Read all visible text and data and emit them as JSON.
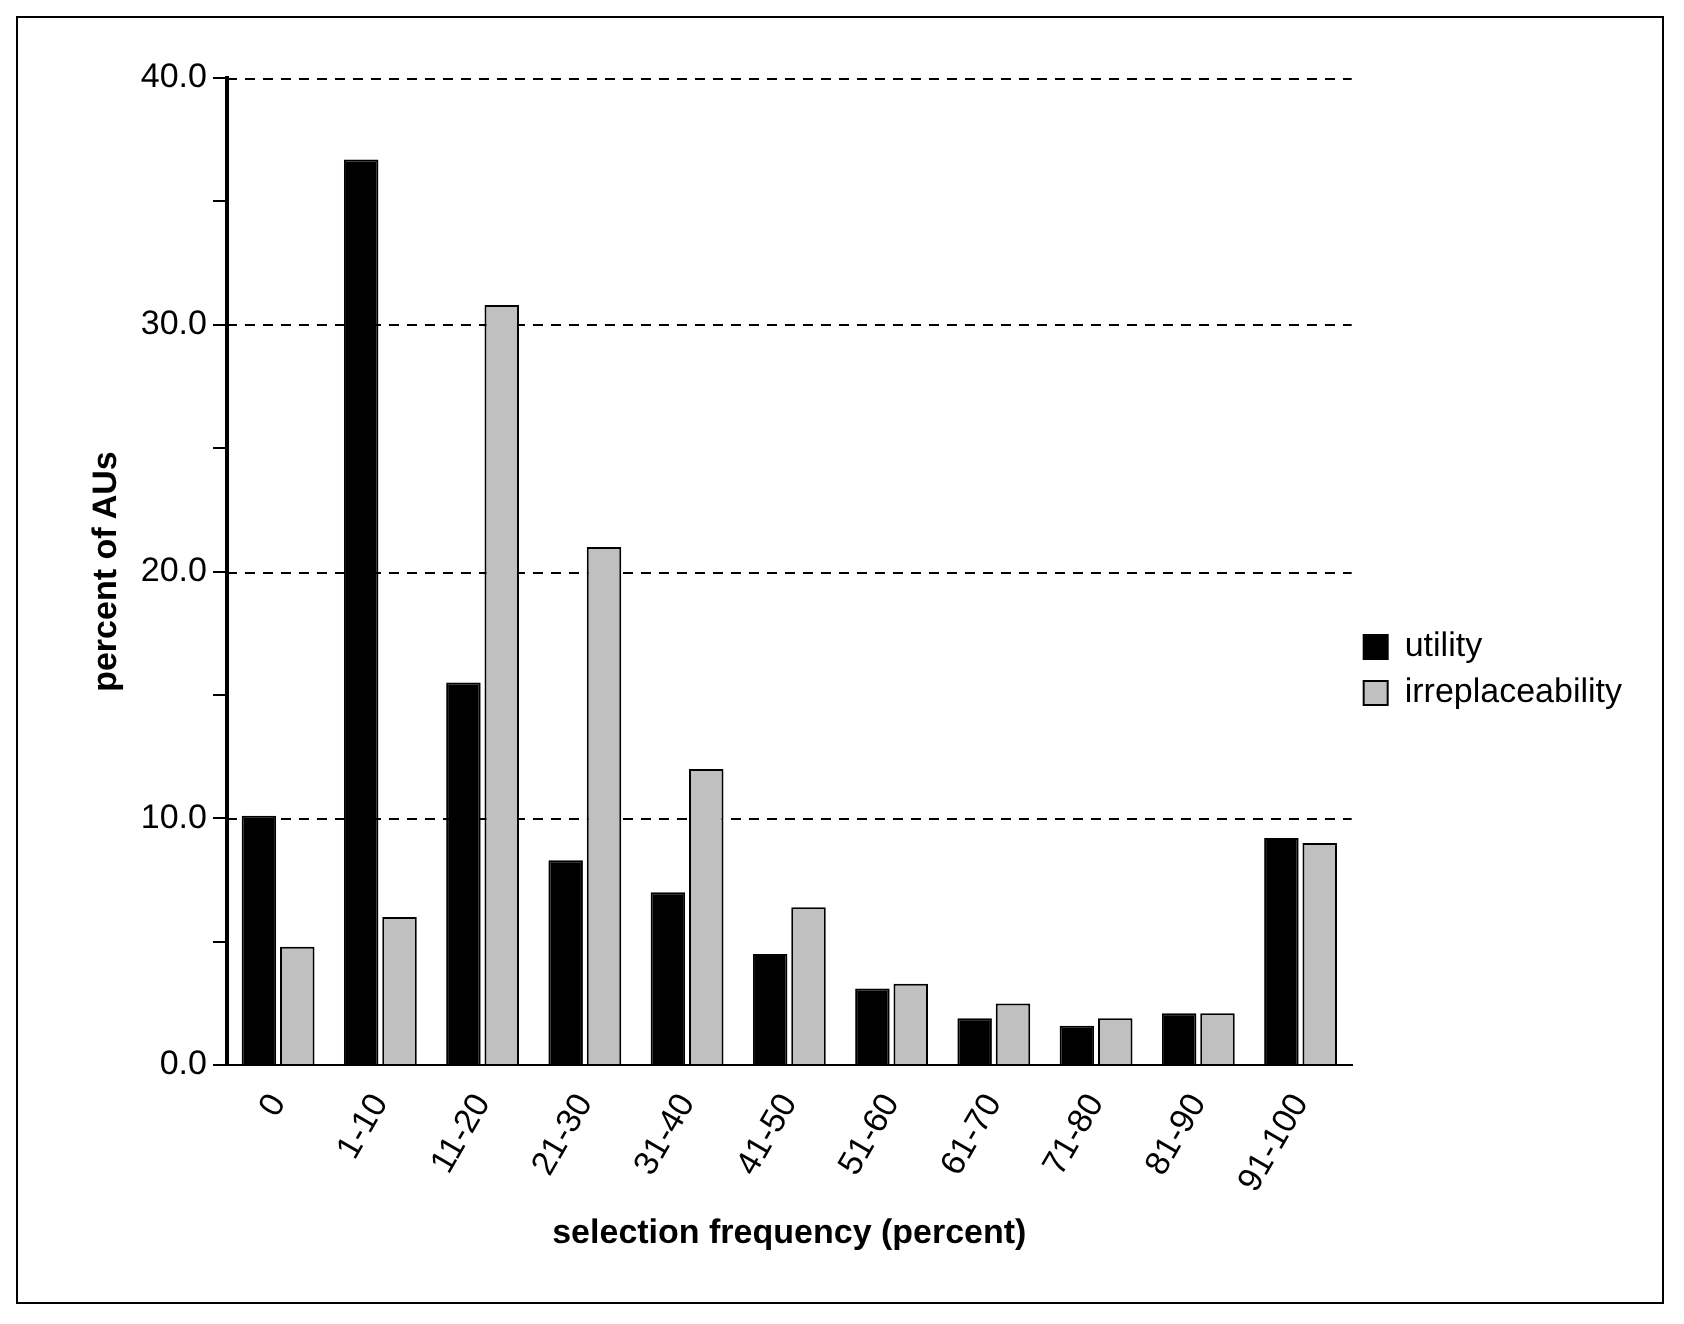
{
  "chart_data": {
    "type": "bar",
    "xlabel": "selection frequency (percent)",
    "ylabel": "percent of AUs",
    "categories": [
      "0",
      "1-10",
      "11-20",
      "21-30",
      "31-40",
      "41-50",
      "51-60",
      "61-70",
      "71-80",
      "81-90",
      "91-100"
    ],
    "series": [
      {
        "name": "utility",
        "color": "#000000",
        "values": [
          10.1,
          36.7,
          15.5,
          8.3,
          7.0,
          4.5,
          3.1,
          1.9,
          1.6,
          2.1,
          9.2
        ]
      },
      {
        "name": "irreplaceability",
        "color": "#c0c0c0",
        "values": [
          4.8,
          6.0,
          30.8,
          21.0,
          12.0,
          6.4,
          3.3,
          2.5,
          1.9,
          2.1,
          9.0
        ]
      }
    ],
    "ylim": [
      0,
      40
    ],
    "yticks": [
      {
        "value": 0,
        "label": "0.0"
      },
      {
        "value": 5,
        "label": null
      },
      {
        "value": 10,
        "label": "10.0"
      },
      {
        "value": 15,
        "label": null
      },
      {
        "value": 20,
        "label": "20.0"
      },
      {
        "value": 25,
        "label": null
      },
      {
        "value": 30,
        "label": "30.0"
      },
      {
        "value": 35,
        "label": null
      },
      {
        "value": 40,
        "label": "40.0"
      }
    ],
    "grid": "y",
    "legend": "right"
  }
}
